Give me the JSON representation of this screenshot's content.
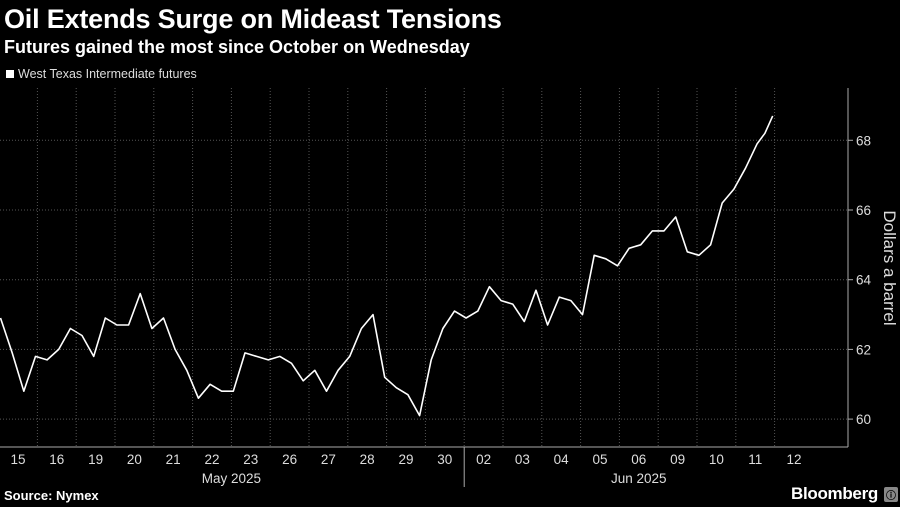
{
  "header": {
    "title": "Oil Extends Surge on Mideast Tensions",
    "subtitle": "Futures gained the most since October on Wednesday"
  },
  "footer": {
    "source": "Source: Nymex",
    "brand": "Bloomberg",
    "brand_badge": "ⓘ"
  },
  "colors": {
    "background": "#000000",
    "line": "#ffffff",
    "grid": "#555555",
    "text": "#dddddd"
  },
  "chart_data": {
    "type": "line",
    "title": "Oil Extends Surge on Mideast Tensions",
    "subtitle": "Futures gained the most since October on Wednesday",
    "ylabel": "Dollars a barrel",
    "xlabel": "",
    "ylim": [
      59.2,
      69.5
    ],
    "y_ticks": [
      60,
      62,
      64,
      66,
      68
    ],
    "y_axis_position": "right",
    "grid": "horizontal dotted",
    "legend": "top-left",
    "x_tick_labels": [
      "15",
      "16",
      "19",
      "20",
      "21",
      "22",
      "23",
      "26",
      "27",
      "28",
      "29",
      "30",
      "02",
      "03",
      "04",
      "05",
      "06",
      "09",
      "10",
      "11",
      "12"
    ],
    "x_groups": [
      {
        "label": "May 2025",
        "from": "15",
        "to": "30"
      },
      {
        "label": "Jun 2025",
        "from": "02",
        "to": "12"
      }
    ],
    "series": [
      {
        "name": "West Texas Intermediate futures",
        "x": [
          0,
          0.3,
          0.6,
          0.9,
          1.2,
          1.5,
          1.8,
          2.1,
          2.4,
          2.7,
          3.0,
          3.3,
          3.6,
          3.9,
          4.2,
          4.5,
          4.8,
          5.1,
          5.4,
          5.7,
          6.0,
          6.3,
          6.6,
          6.9,
          7.2,
          7.5,
          7.8,
          8.1,
          8.4,
          8.7,
          9.0,
          9.3,
          9.6,
          9.9,
          10.2,
          10.5,
          10.8,
          11.1,
          11.4,
          11.7,
          12.0,
          12.3,
          12.6,
          12.9,
          13.2,
          13.5,
          13.8,
          14.1,
          14.4,
          14.7,
          15.0,
          15.3,
          15.6,
          15.9,
          16.2,
          16.5,
          16.8,
          17.1,
          17.4,
          17.7,
          18.0,
          18.3,
          18.6,
          18.9,
          19.2,
          19.5,
          19.7,
          19.9
        ],
        "values": [
          62.9,
          61.9,
          60.8,
          61.8,
          61.7,
          62.0,
          62.6,
          62.4,
          61.8,
          62.9,
          62.7,
          62.7,
          63.6,
          62.6,
          62.9,
          62.0,
          61.4,
          60.6,
          61.0,
          60.8,
          60.8,
          61.9,
          61.8,
          61.7,
          61.8,
          61.6,
          61.1,
          61.4,
          60.8,
          61.4,
          61.8,
          62.6,
          63.0,
          61.2,
          60.9,
          60.7,
          60.1,
          61.7,
          62.6,
          63.1,
          62.9,
          63.1,
          63.8,
          63.4,
          63.3,
          62.8,
          63.7,
          62.7,
          63.5,
          63.4,
          63.0,
          64.7,
          64.6,
          64.4,
          64.9,
          65.0,
          65.4,
          65.4,
          65.8,
          64.8,
          64.7,
          65.0,
          66.2,
          66.6,
          67.2,
          67.9,
          68.2,
          68.7
        ]
      }
    ]
  }
}
